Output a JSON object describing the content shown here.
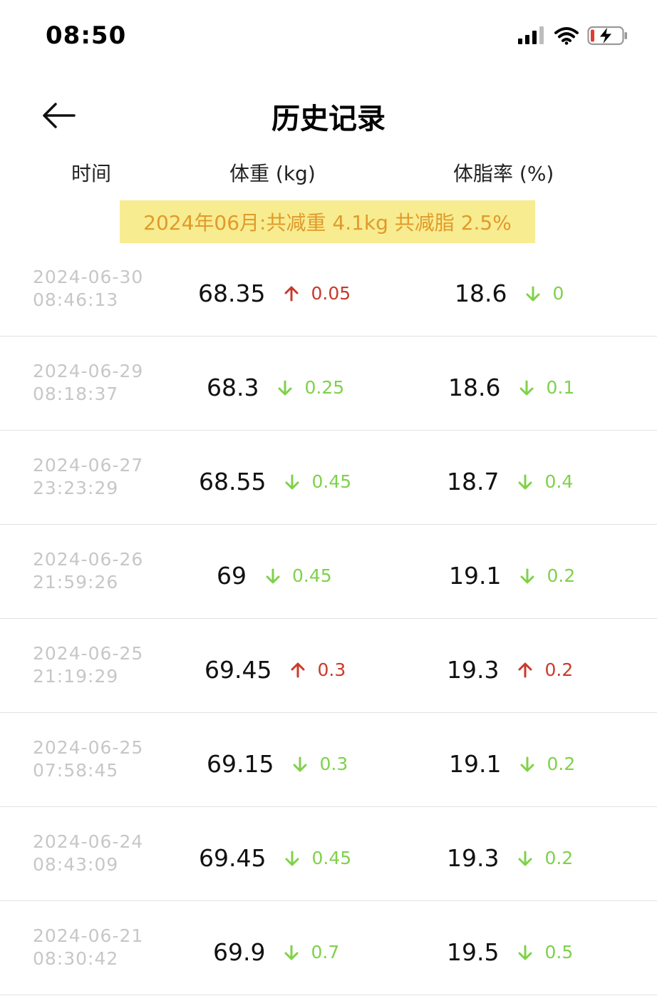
{
  "status_bar": {
    "time": "08:50"
  },
  "header": {
    "title": "历史记录"
  },
  "columns": {
    "time": "时间",
    "weight": "体重 (kg)",
    "body_fat": "体脂率 (%)"
  },
  "summary": {
    "text": "2024年06月:共减重 4.1kg  共减脂 2.5%"
  },
  "colors": {
    "up": "#c93a2a",
    "down": "#7fd14a",
    "banner_bg": "#f8ec90",
    "banner_text": "#e09a2b"
  },
  "records": [
    {
      "date": "2024-06-30",
      "time": "08:46:13",
      "weight": "68.35",
      "weight_dir": "up",
      "weight_delta": "0.05",
      "fat": "18.6",
      "fat_dir": "down",
      "fat_delta": "0"
    },
    {
      "date": "2024-06-29",
      "time": "08:18:37",
      "weight": "68.3",
      "weight_dir": "down",
      "weight_delta": "0.25",
      "fat": "18.6",
      "fat_dir": "down",
      "fat_delta": "0.1"
    },
    {
      "date": "2024-06-27",
      "time": "23:23:29",
      "weight": "68.55",
      "weight_dir": "down",
      "weight_delta": "0.45",
      "fat": "18.7",
      "fat_dir": "down",
      "fat_delta": "0.4"
    },
    {
      "date": "2024-06-26",
      "time": "21:59:26",
      "weight": "69",
      "weight_dir": "down",
      "weight_delta": "0.45",
      "fat": "19.1",
      "fat_dir": "down",
      "fat_delta": "0.2"
    },
    {
      "date": "2024-06-25",
      "time": "21:19:29",
      "weight": "69.45",
      "weight_dir": "up",
      "weight_delta": "0.3",
      "fat": "19.3",
      "fat_dir": "up",
      "fat_delta": "0.2"
    },
    {
      "date": "2024-06-25",
      "time": "07:58:45",
      "weight": "69.15",
      "weight_dir": "down",
      "weight_delta": "0.3",
      "fat": "19.1",
      "fat_dir": "down",
      "fat_delta": "0.2"
    },
    {
      "date": "2024-06-24",
      "time": "08:43:09",
      "weight": "69.45",
      "weight_dir": "down",
      "weight_delta": "0.45",
      "fat": "19.3",
      "fat_dir": "down",
      "fat_delta": "0.2"
    },
    {
      "date": "2024-06-21",
      "time": "08:30:42",
      "weight": "69.9",
      "weight_dir": "down",
      "weight_delta": "0.7",
      "fat": "19.5",
      "fat_dir": "down",
      "fat_delta": "0.5"
    }
  ]
}
